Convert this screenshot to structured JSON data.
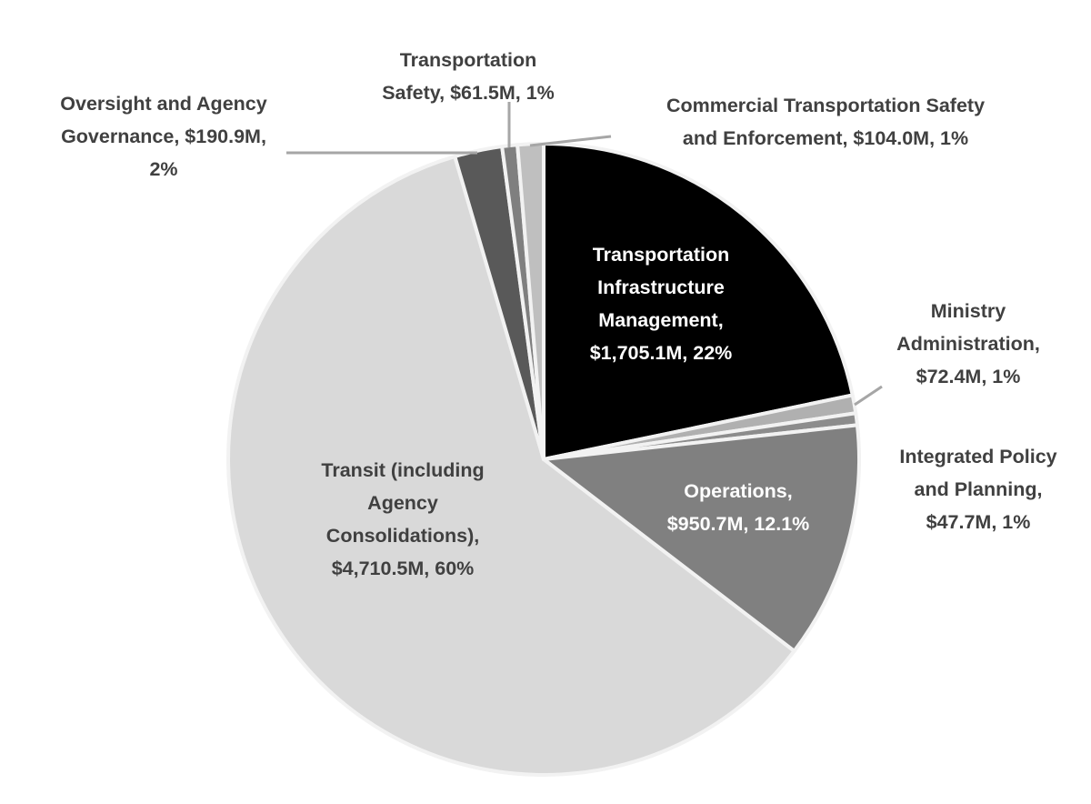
{
  "chart_data": {
    "type": "pie",
    "units": "$M",
    "start": "top",
    "direction": "clockwise",
    "slices": [
      {
        "name": "Transportation Infrastructure Management",
        "value": 1705.1,
        "percent_label": "22%",
        "color": "#000000",
        "label_lines": [
          "Transportation",
          "Infrastructure",
          "Management,",
          "$1,705.1M, 22%"
        ]
      },
      {
        "name": "Ministry Administration",
        "value": 72.4,
        "percent_label": "1%",
        "color": "#b0b0b0",
        "label_lines": [
          "Ministry",
          "Administration,",
          "$72.4M, 1%"
        ]
      },
      {
        "name": "Integrated Policy and Planning",
        "value": 47.7,
        "percent_label": "1%",
        "color": "#8c8c8c",
        "label_lines": [
          "Integrated Policy",
          "and Planning,",
          "$47.7M, 1%"
        ]
      },
      {
        "name": "Operations",
        "value": 950.7,
        "percent_label": "12.1%",
        "color": "#808080",
        "label_lines": [
          "Operations,",
          "$950.7M, 12.1%"
        ]
      },
      {
        "name": "Transit (including Agency Consolidations)",
        "value": 4710.5,
        "percent_label": "60%",
        "color": "#d9d9d9",
        "label_lines": [
          "Transit (including",
          "Agency",
          "Consolidations),",
          "$4,710.5M, 60%"
        ]
      },
      {
        "name": "Oversight and Agency Governance",
        "value": 190.9,
        "percent_label": "2%",
        "color": "#595959",
        "label_lines": [
          "Oversight and Agency",
          "Governance, $190.9M,",
          "2%"
        ]
      },
      {
        "name": "Transportation Safety",
        "value": 61.5,
        "percent_label": "1%",
        "color": "#7f7f7f",
        "label_lines": [
          "Transportation",
          "Safety, $61.5M, 1%"
        ]
      },
      {
        "name": "Commercial Transportation Safety and Enforcement",
        "value": 104.0,
        "percent_label": "1%",
        "color": "#bfbfbf",
        "label_lines": [
          "Commercial Transportation Safety",
          "and Enforcement, $104.0M, 1%"
        ]
      }
    ],
    "legend": "none (data labels)"
  }
}
